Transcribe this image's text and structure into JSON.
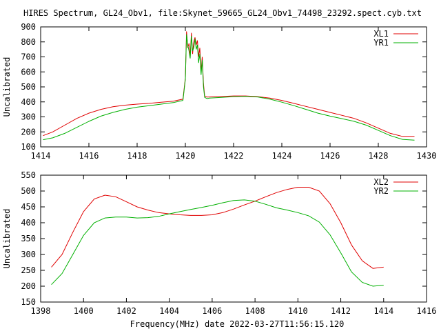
{
  "title": "HIRES Spectrum, GL24_Obv1, file:Skynet_59665_GL24_Obv1_74498_23292.spect.cyb.txt",
  "chart_data": [
    {
      "type": "line",
      "ylabel": "Uncalibrated",
      "xlabel": "",
      "xlim": [
        1414,
        1430
      ],
      "ylim": [
        100,
        900
      ],
      "xticks": [
        "1414",
        "1416",
        "1418",
        "1420",
        "1422",
        "1424",
        "1426",
        "1428",
        "1430"
      ],
      "yticks": [
        "100",
        "200",
        "300",
        "400",
        "500",
        "600",
        "700",
        "800",
        "900"
      ],
      "legend": "top-right",
      "series": [
        {
          "name": "XL1",
          "color": "#e00000",
          "x": [
            1414.1,
            1414.5,
            1415.0,
            1415.5,
            1416.0,
            1416.5,
            1417.0,
            1417.5,
            1418.0,
            1418.5,
            1419.0,
            1419.5,
            1419.9,
            1420.0,
            1420.05,
            1420.1,
            1420.15,
            1420.2,
            1420.25,
            1420.3,
            1420.35,
            1420.4,
            1420.45,
            1420.5,
            1420.55,
            1420.6,
            1420.65,
            1420.7,
            1420.75,
            1420.8,
            1420.9,
            1421.0,
            1421.5,
            1422.0,
            1422.5,
            1423.0,
            1423.5,
            1424.0,
            1424.5,
            1425.0,
            1425.5,
            1426.0,
            1426.5,
            1427.0,
            1427.5,
            1428.0,
            1428.5,
            1429.0,
            1429.5
          ],
          "values": [
            175,
            200,
            245,
            290,
            325,
            350,
            368,
            378,
            385,
            390,
            398,
            405,
            418,
            560,
            870,
            760,
            790,
            700,
            860,
            720,
            800,
            830,
            780,
            810,
            700,
            760,
            600,
            700,
            520,
            440,
            432,
            433,
            436,
            440,
            440,
            435,
            425,
            410,
            390,
            370,
            350,
            330,
            310,
            290,
            260,
            225,
            190,
            170,
            170
          ]
        },
        {
          "name": "YR1",
          "color": "#00b000",
          "x": [
            1414.1,
            1414.5,
            1415.0,
            1415.5,
            1416.0,
            1416.5,
            1417.0,
            1417.5,
            1418.0,
            1418.5,
            1419.0,
            1419.5,
            1419.9,
            1420.0,
            1420.05,
            1420.1,
            1420.15,
            1420.2,
            1420.25,
            1420.3,
            1420.35,
            1420.4,
            1420.45,
            1420.5,
            1420.55,
            1420.6,
            1420.65,
            1420.7,
            1420.75,
            1420.8,
            1420.9,
            1421.0,
            1421.5,
            1422.0,
            1422.5,
            1423.0,
            1423.5,
            1424.0,
            1424.5,
            1425.0,
            1425.5,
            1426.0,
            1426.5,
            1427.0,
            1427.5,
            1428.0,
            1428.5,
            1429.0,
            1429.5
          ],
          "values": [
            148,
            160,
            190,
            230,
            270,
            305,
            330,
            350,
            365,
            375,
            385,
            395,
            410,
            550,
            850,
            780,
            740,
            690,
            840,
            740,
            760,
            820,
            750,
            780,
            660,
            720,
            580,
            680,
            500,
            430,
            422,
            425,
            430,
            435,
            437,
            433,
            418,
            398,
            375,
            350,
            325,
            305,
            288,
            270,
            245,
            210,
            175,
            150,
            145
          ]
        }
      ]
    },
    {
      "type": "line",
      "ylabel": "Uncalibrated",
      "xlabel": "Frequency(MHz) date 2022-03-27T11:56:15.120",
      "xlim": [
        1398,
        1416
      ],
      "ylim": [
        150,
        550
      ],
      "xticks": [
        "1398",
        "1400",
        "1402",
        "1404",
        "1406",
        "1408",
        "1410",
        "1412",
        "1414",
        "1416"
      ],
      "yticks": [
        "150",
        "200",
        "250",
        "300",
        "350",
        "400",
        "450",
        "500",
        "550"
      ],
      "legend": "top-right",
      "series": [
        {
          "name": "XL2",
          "color": "#e00000",
          "x": [
            1398.5,
            1399.0,
            1399.5,
            1400.0,
            1400.5,
            1401.0,
            1401.5,
            1402.0,
            1402.5,
            1403.0,
            1403.5,
            1404.0,
            1404.5,
            1405.0,
            1405.5,
            1406.0,
            1406.5,
            1407.0,
            1407.5,
            1408.0,
            1408.5,
            1409.0,
            1409.5,
            1410.0,
            1410.5,
            1411.0,
            1411.5,
            1412.0,
            1412.5,
            1413.0,
            1413.5,
            1414.0
          ],
          "values": [
            260,
            300,
            370,
            435,
            475,
            487,
            482,
            466,
            450,
            440,
            432,
            428,
            425,
            423,
            423,
            425,
            432,
            443,
            456,
            468,
            482,
            495,
            505,
            512,
            512,
            500,
            460,
            400,
            330,
            280,
            256,
            260
          ]
        },
        {
          "name": "YR2",
          "color": "#00b000",
          "x": [
            1398.5,
            1399.0,
            1399.5,
            1400.0,
            1400.5,
            1401.0,
            1401.5,
            1402.0,
            1402.5,
            1403.0,
            1403.5,
            1404.0,
            1404.5,
            1405.0,
            1405.5,
            1406.0,
            1406.5,
            1407.0,
            1407.5,
            1408.0,
            1408.5,
            1409.0,
            1409.5,
            1410.0,
            1410.5,
            1411.0,
            1411.5,
            1412.0,
            1412.5,
            1413.0,
            1413.5,
            1414.0
          ],
          "values": [
            205,
            240,
            300,
            360,
            400,
            415,
            418,
            418,
            415,
            416,
            420,
            428,
            435,
            442,
            448,
            455,
            463,
            470,
            472,
            468,
            458,
            447,
            440,
            432,
            422,
            402,
            362,
            305,
            245,
            212,
            200,
            203
          ]
        }
      ]
    }
  ]
}
